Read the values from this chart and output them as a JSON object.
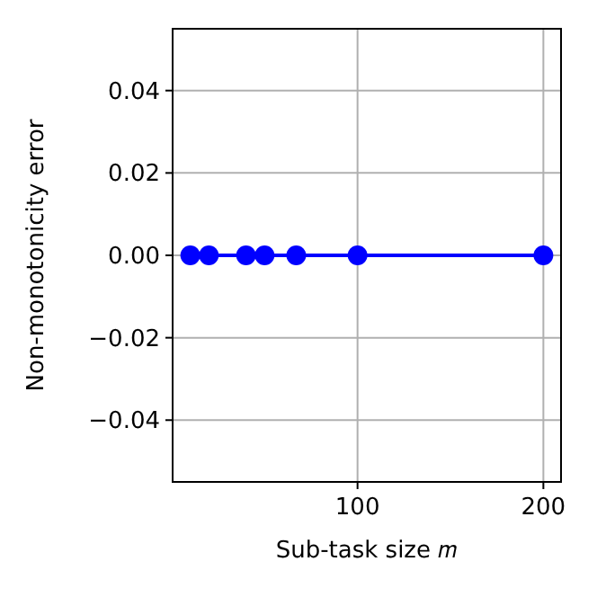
{
  "chart_data": {
    "type": "line",
    "xlabel": "Sub-task size 𝑚",
    "ylabel": "Non-monotonicity error",
    "x": [
      10,
      20,
      40,
      50,
      67,
      100,
      200
    ],
    "series": [
      {
        "color": "#0000ff",
        "values": [
          0,
          0,
          0,
          0,
          0,
          0,
          0
        ]
      }
    ],
    "xlim": [
      0.5,
      209.5
    ],
    "xticks": [
      100,
      200
    ],
    "ylim": [
      -0.055,
      0.055
    ],
    "yticks": [
      {
        "value": -0.04,
        "label": "−0.04"
      },
      {
        "value": -0.02,
        "label": "−0.02"
      },
      {
        "value": 0,
        "label": "0.00"
      },
      0.02,
      0.04
    ],
    "grid": true,
    "marker": "circle",
    "line_style": "solid"
  }
}
